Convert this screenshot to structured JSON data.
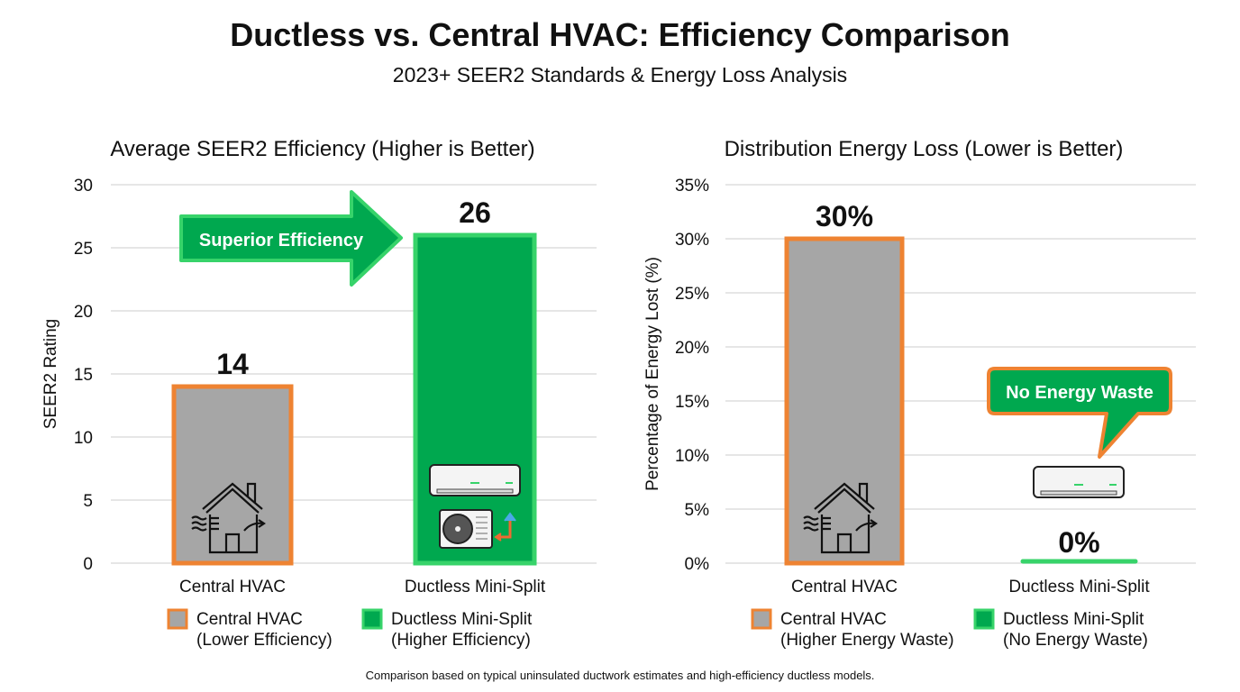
{
  "title": "Ductless vs. Central HVAC: Efficiency Comparison",
  "subtitle": "2023+ SEER2 Standards & Energy Loss Analysis",
  "footnote": "Comparison based on typical uninsulated ductwork estimates and high-efficiency ductless models.",
  "colors": {
    "central_fill": "#a6a6a6",
    "central_border": "#ee8332",
    "ductless_fill": "#00a84f",
    "ductless_border": "#37d36a",
    "grid": "#dddddd"
  },
  "chart_data": [
    {
      "type": "bar",
      "title": "Average SEER2 Efficiency (Higher is Better)",
      "ylabel": "SEER2 Rating",
      "xlabel": "",
      "ylim": [
        0,
        30
      ],
      "yticks": [
        "0",
        "5",
        "10",
        "15",
        "20",
        "25",
        "30"
      ],
      "grid": true,
      "categories": [
        "Central HVAC",
        "Ductless Mini-Split"
      ],
      "values": [
        14,
        26
      ],
      "data_labels": [
        "14",
        "26"
      ],
      "icons": [
        "house-heat-loss-icon",
        "mini-split-unit-icon"
      ],
      "annotation": "Superior Efficiency",
      "legend": [
        {
          "line1": "Central HVAC",
          "line2": "(Lower Efficiency)"
        },
        {
          "line1": "Ductless Mini-Split",
          "line2": "(Higher Efficiency)"
        }
      ],
      "legend_placement": "bottom"
    },
    {
      "type": "bar",
      "title": "Distribution Energy Loss (Lower is Better)",
      "ylabel": "Percentage of Energy Lost (%)",
      "xlabel": "",
      "ylim": [
        0,
        35
      ],
      "yticks": [
        "0%",
        "5%",
        "10%",
        "15%",
        "20%",
        "25%",
        "30%",
        "35%"
      ],
      "grid": true,
      "categories": [
        "Central HVAC",
        "Ductless Mini-Split"
      ],
      "values": [
        30,
        0
      ],
      "data_labels": [
        "30%",
        "0%"
      ],
      "icons": [
        "house-heat-loss-icon",
        "mini-split-indoor-icon"
      ],
      "annotation": "No Energy Waste",
      "legend": [
        {
          "line1": "Central HVAC",
          "line2": "(Higher Energy Waste)"
        },
        {
          "line1": "Ductless Mini-Split",
          "line2": "(No Energy Waste)"
        }
      ],
      "legend_placement": "bottom"
    }
  ]
}
